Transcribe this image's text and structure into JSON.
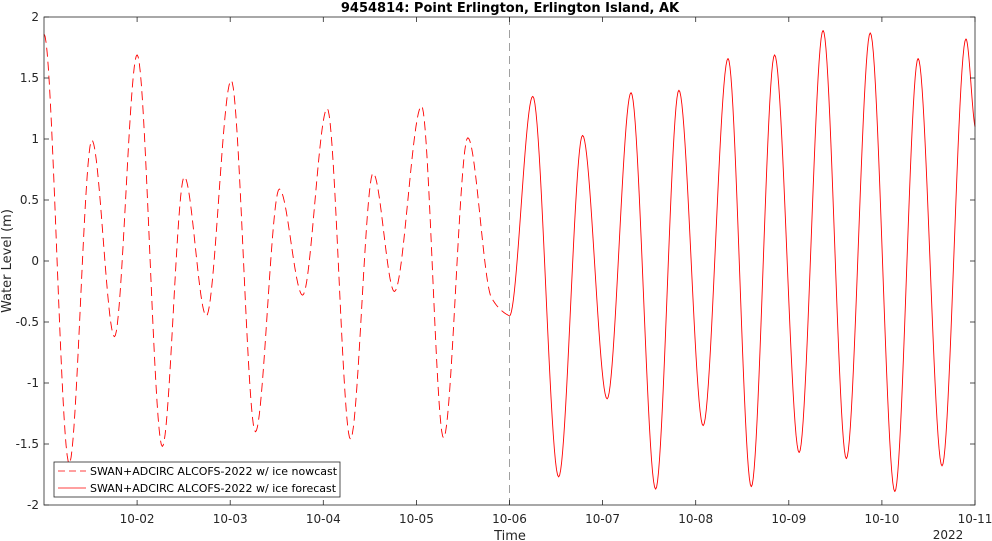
{
  "chart_data": {
    "type": "line",
    "title": "9454814: Point Erlington, Erlington Island, AK",
    "xlabel": "Time",
    "ylabel": "Water Level (m)",
    "year_label": "2022",
    "ylim": [
      -2,
      2
    ],
    "yticks": [
      -2,
      -1.5,
      -1,
      -0.5,
      0,
      0.5,
      1,
      1.5,
      2
    ],
    "xlim": [
      "2022-10-01 00:00",
      "2022-10-11 00:00"
    ],
    "xticks": [
      "10-02",
      "10-03",
      "10-04",
      "10-05",
      "10-06",
      "10-07",
      "10-08",
      "10-09",
      "10-10",
      "10-11"
    ],
    "nowcast_end": "2022-10-06 00:00",
    "legend_position": "bottom-left",
    "grid": false,
    "colors": {
      "series": "#ff0000",
      "axis": "#262626",
      "divider": "#a0a0a0"
    },
    "series": [
      {
        "name": "SWAN+ADCIRC ALCOFS-2022 w/ ice nowcast",
        "style": "dashed",
        "x": [
          "2022-10-01 00:00",
          "2022-10-01 06:30",
          "2022-10-01 12:20",
          "2022-10-01 18:10",
          "2022-10-02 00:00",
          "2022-10-02 06:30",
          "2022-10-02 12:10",
          "2022-10-02 17:50",
          "2022-10-03 00:15",
          "2022-10-03 06:30",
          "2022-10-03 12:40",
          "2022-10-03 18:40",
          "2022-10-04 01:00",
          "2022-10-04 07:00",
          "2022-10-04 12:50",
          "2022-10-04 18:20",
          "2022-10-05 01:20",
          "2022-10-05 07:00",
          "2022-10-05 13:15",
          "2022-10-05 19:20",
          "2022-10-06 00:00"
        ],
        "y": [
          1.86,
          -1.66,
          0.99,
          -0.62,
          1.69,
          -1.52,
          0.69,
          -0.45,
          1.48,
          -1.4,
          0.59,
          -0.28,
          1.25,
          -1.46,
          0.72,
          -0.25,
          1.27,
          -1.45,
          1.01,
          -0.3,
          -0.45
        ]
      },
      {
        "name": "SWAN+ADCIRC ALCOFS-2022 w/ ice forecast",
        "style": "solid",
        "x": [
          "2022-10-06 00:00",
          "2022-10-06 06:00",
          "2022-10-06 12:40",
          "2022-10-06 18:50",
          "2022-10-07 01:10",
          "2022-10-07 07:20",
          "2022-10-07 13:40",
          "2022-10-07 19:40",
          "2022-10-08 01:55",
          "2022-10-08 08:20",
          "2022-10-08 14:20",
          "2022-10-08 20:20",
          "2022-10-09 02:40",
          "2022-10-09 08:50",
          "2022-10-09 14:50",
          "2022-10-09 21:00",
          "2022-10-10 03:20",
          "2022-10-10 09:20",
          "2022-10-10 15:30",
          "2022-10-10 21:40",
          "2022-10-11 00:00"
        ],
        "y": [
          -0.45,
          1.35,
          -1.77,
          1.03,
          -1.13,
          1.38,
          -1.87,
          1.4,
          -1.35,
          1.66,
          -1.85,
          1.69,
          -1.57,
          1.89,
          -1.62,
          1.87,
          -1.89,
          1.66,
          -1.68,
          1.82,
          1.1
        ]
      }
    ]
  }
}
